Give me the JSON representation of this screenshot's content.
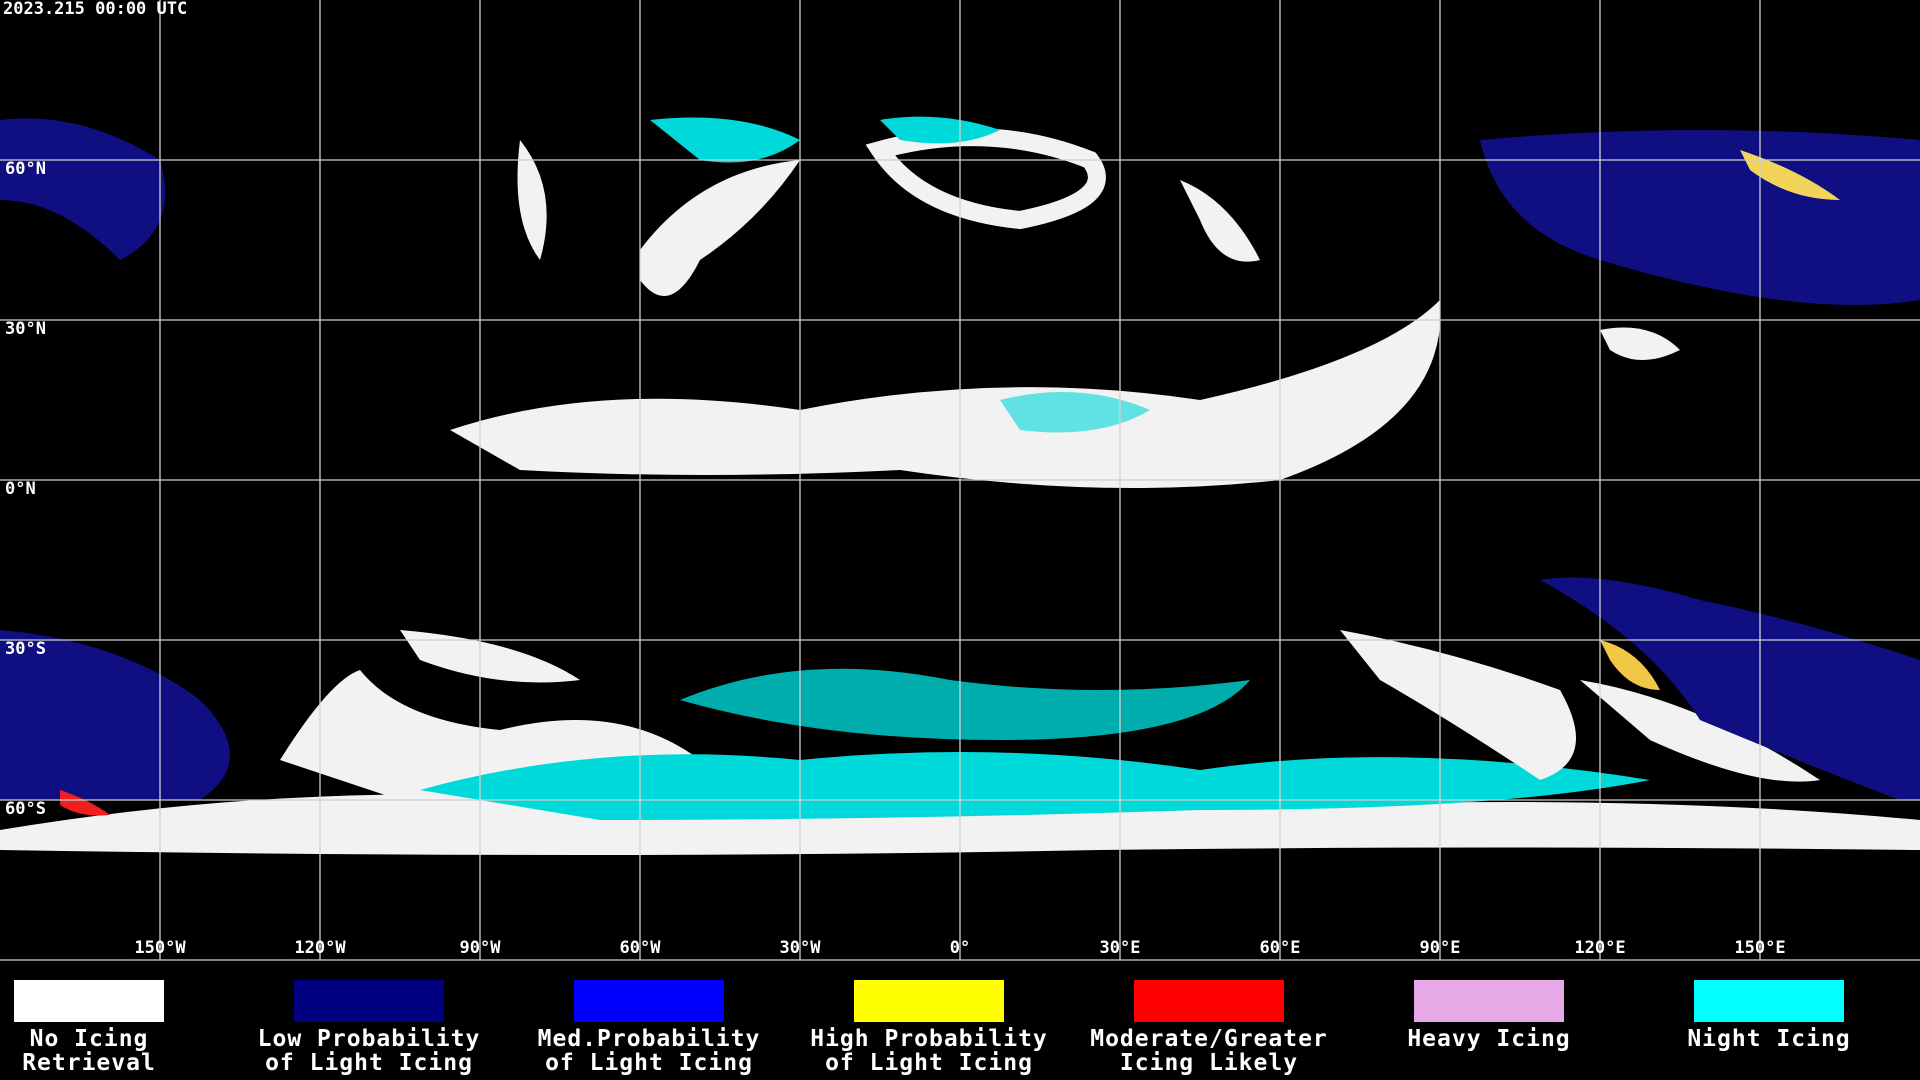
{
  "header": {
    "timestamp": "2023.215 00:00 UTC"
  },
  "map": {
    "lat_ticks": [
      {
        "value": 60,
        "label": "60°N"
      },
      {
        "value": 30,
        "label": "30°N"
      },
      {
        "value": 0,
        "label": "0°N"
      },
      {
        "value": -30,
        "label": "30°S"
      },
      {
        "value": -60,
        "label": "60°S"
      }
    ],
    "lon_ticks": [
      {
        "value": -150,
        "label": "150°W"
      },
      {
        "value": -120,
        "label": "120°W"
      },
      {
        "value": -90,
        "label": "90°W"
      },
      {
        "value": -60,
        "label": "60°W"
      },
      {
        "value": -30,
        "label": "30°W"
      },
      {
        "value": 0,
        "label": "0°"
      },
      {
        "value": 30,
        "label": "30°E"
      },
      {
        "value": 60,
        "label": "60°E"
      },
      {
        "value": 90,
        "label": "90°E"
      },
      {
        "value": 120,
        "label": "120°E"
      },
      {
        "value": 150,
        "label": "150°E"
      }
    ]
  },
  "legend": [
    {
      "lines": [
        "No Icing",
        "Retrieval"
      ],
      "color": "#ffffff"
    },
    {
      "lines": [
        "Low Probability",
        "of Light Icing"
      ],
      "color": "#000080"
    },
    {
      "lines": [
        "Med.Probability",
        "of Light Icing"
      ],
      "color": "#0000ff"
    },
    {
      "lines": [
        "High Probability",
        "of Light Icing"
      ],
      "color": "#ffff00"
    },
    {
      "lines": [
        "Moderate/Greater",
        "Icing Likely"
      ],
      "color": "#ff0000"
    },
    {
      "lines": [
        "Heavy Icing"
      ],
      "color": "#e6a8e6"
    },
    {
      "lines": [
        "Night Icing"
      ],
      "color": "#00ffff"
    }
  ]
}
